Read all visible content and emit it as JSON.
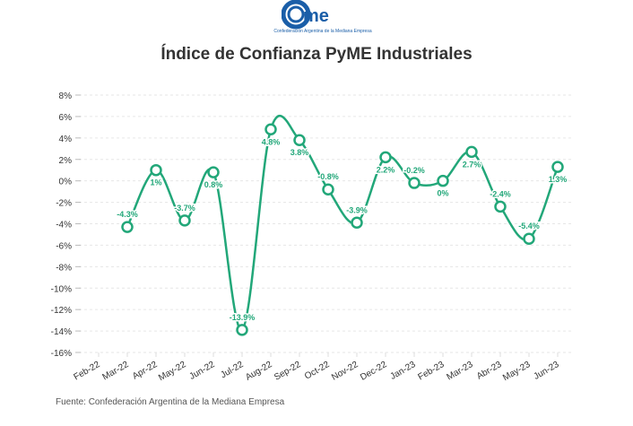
{
  "logo": {
    "text": "came",
    "subtitle": "Confederación Argentina de la Mediana Empresa",
    "color": "#1a5ea8"
  },
  "chart_data": {
    "type": "line",
    "title": "Índice de Confianza PyME Industriales",
    "categories": [
      "Feb-22",
      "Mar-22",
      "Apr-22",
      "May-22",
      "Jun-22",
      "Jul-22",
      "Aug-22",
      "Sep-22",
      "Oct-22",
      "Nov-22",
      "Dec-22",
      "Jan-23",
      "Feb-23",
      "Mar-23",
      "Abr-23",
      "May-23",
      "Jun-23"
    ],
    "values": [
      null,
      -4.3,
      1,
      -3.7,
      0.8,
      -13.9,
      4.8,
      3.8,
      -0.8,
      -3.9,
      2.2,
      -0.2,
      0,
      2.7,
      -2.4,
      -5.4,
      1.3
    ],
    "data_labels": [
      "",
      "-4.3%",
      "1%",
      "-3.7%",
      "0.8%",
      "-13.9%",
      "4.8%",
      "3.8%",
      "-0.8%",
      "-3.9%",
      "2.2%",
      "-0.2%",
      "0%",
      "2.7%",
      "-2.4%",
      "-5.4%",
      "1.3%"
    ],
    "yticks": [
      8,
      6,
      4,
      2,
      0,
      -2,
      -4,
      -6,
      -8,
      -10,
      -12,
      -14,
      -16
    ],
    "ytick_labels": [
      "8%",
      "6%",
      "4%",
      "2%",
      "0%",
      "-2%",
      "-4%",
      "-6%",
      "-8%",
      "-10%",
      "-12%",
      "-14%",
      "-16%"
    ],
    "ylim": [
      -16,
      8
    ],
    "grid": true,
    "color": "#22a779"
  },
  "source": "Fuente: Confederación Argentina de la Mediana Empresa"
}
